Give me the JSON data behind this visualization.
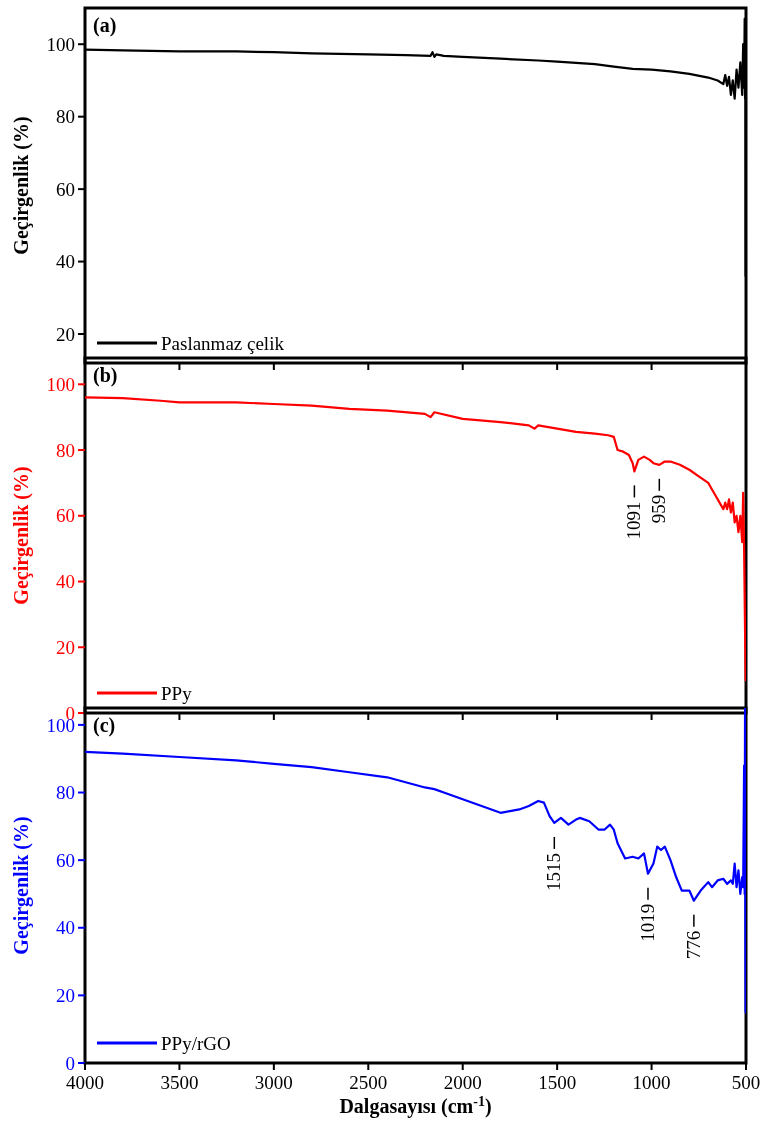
{
  "chart_data": [
    {
      "type": "line",
      "title": "(a)",
      "ylabel": "Geçirgenlik (%)",
      "xlim": [
        4000,
        500
      ],
      "xticks": [
        4000,
        3500,
        3000,
        2500,
        2000,
        1500,
        1000,
        500
      ],
      "ylim": [
        12,
        110
      ],
      "yticks": [
        20,
        40,
        60,
        80,
        100
      ],
      "tick_labels": "y",
      "legend": "bottom left",
      "grid": false,
      "line_style": "solid",
      "series": [
        {
          "name": "Paslanmaz çelik",
          "color": "#000000",
          "x": [
            4000,
            3800,
            3500,
            3200,
            3000,
            2800,
            2500,
            2300,
            2170,
            2160,
            2150,
            2140,
            2100,
            2000,
            1800,
            1600,
            1500,
            1300,
            1200,
            1100,
            1000,
            900,
            800,
            700,
            650,
            620,
            610,
            600,
            590,
            580,
            570,
            560,
            550,
            540,
            530,
            520,
            515,
            510,
            507,
            505,
            503,
            502,
            501,
            500
          ],
          "values": [
            98.5,
            98.3,
            98,
            98,
            97.8,
            97.5,
            97.2,
            97,
            96.8,
            97.8,
            96.5,
            97.2,
            96.8,
            96.5,
            96,
            95.5,
            95.2,
            94.5,
            93.8,
            93.2,
            93,
            92.5,
            91.8,
            90.8,
            90,
            89,
            91.5,
            88.5,
            91,
            86,
            90,
            85,
            93,
            88,
            95,
            86,
            100,
            88,
            107,
            85,
            104,
            36,
            90,
            86
          ]
        }
      ]
    },
    {
      "type": "line",
      "title": "(b)",
      "ylabel": "Geçirgenlik (%)",
      "xlim": [
        4000,
        500
      ],
      "xticks": [
        4000,
        3500,
        3000,
        2500,
        2000,
        1500,
        1000,
        500
      ],
      "ylim": [
        0,
        108
      ],
      "yticks": [
        0,
        20,
        40,
        60,
        80,
        100
      ],
      "tick_labels": "y",
      "legend": "bottom left",
      "grid": false,
      "line_style": "solid",
      "series": [
        {
          "name": "PPy",
          "color": "#ff0000",
          "x": [
            4000,
            3800,
            3600,
            3500,
            3200,
            3000,
            2800,
            2600,
            2400,
            2200,
            2170,
            2150,
            2000,
            1800,
            1650,
            1620,
            1600,
            1500,
            1400,
            1300,
            1230,
            1200,
            1180,
            1150,
            1120,
            1100,
            1091,
            1070,
            1040,
            1010,
            990,
            959,
            930,
            900,
            850,
            800,
            750,
            700,
            680,
            660,
            640,
            620,
            610,
            600,
            590,
            580,
            570,
            560,
            550,
            540,
            530,
            520,
            515,
            510,
            508,
            506,
            504,
            502
          ],
          "values": [
            96,
            95.8,
            95,
            94.5,
            94.5,
            94,
            93.5,
            92.5,
            92,
            91,
            90,
            91.5,
            89.5,
            88.5,
            87.5,
            86.5,
            87.5,
            86.5,
            85.5,
            85,
            84.5,
            84,
            80,
            79.5,
            78.5,
            76,
            73.5,
            77,
            78,
            77,
            76,
            75.5,
            76.5,
            76.5,
            75.5,
            74,
            72,
            70,
            68,
            66,
            64,
            62,
            64,
            62,
            65,
            61,
            64,
            58,
            60,
            55,
            60,
            52,
            67,
            50,
            null,
            30,
            null,
            10
          ]
        }
      ],
      "annotations": [
        {
          "text": "1091",
          "x": 1091,
          "y": 73.5
        },
        {
          "text": "959",
          "x": 959,
          "y": 75.5
        }
      ]
    },
    {
      "type": "line",
      "title": "(c)",
      "ylabel": "Geçirgenlik (%)",
      "xlabel": "Dalgasayısı (cm$^{-1}$)",
      "xlim": [
        4000,
        500
      ],
      "xticks": [
        4000,
        3500,
        3000,
        2500,
        2000,
        1500,
        1000,
        500
      ],
      "ylim": [
        0,
        105
      ],
      "yticks": [
        0,
        20,
        40,
        60,
        80,
        100
      ],
      "legend": "bottom left",
      "grid": false,
      "line_style": "solid",
      "series": [
        {
          "name": "PPy/rGO",
          "color": "#0000ff",
          "x": [
            4000,
            3800,
            3500,
            3200,
            3000,
            2800,
            2600,
            2400,
            2200,
            2150,
            2100,
            2000,
            1900,
            1800,
            1750,
            1700,
            1650,
            1600,
            1570,
            1540,
            1515,
            1480,
            1440,
            1400,
            1380,
            1330,
            1280,
            1250,
            1220,
            1200,
            1180,
            1140,
            1100,
            1070,
            1040,
            1019,
            990,
            970,
            950,
            930,
            900,
            870,
            840,
            800,
            776,
            740,
            700,
            680,
            650,
            620,
            600,
            580,
            570,
            560,
            550,
            540,
            530,
            520,
            515,
            510,
            507,
            505,
            503,
            502
          ],
          "values": [
            92,
            91.5,
            90.5,
            89.5,
            88.5,
            87.5,
            86,
            84.5,
            81.5,
            81,
            80,
            78,
            76,
            74,
            74.5,
            75,
            76,
            77.5,
            77,
            73,
            71,
            72.5,
            70.5,
            72,
            72.5,
            71.5,
            69,
            69,
            70.5,
            69,
            65,
            60.5,
            61,
            60.5,
            62,
            56,
            59,
            64,
            63,
            64,
            60,
            55,
            51,
            51,
            48,
            51,
            53.5,
            52,
            54,
            54.5,
            53,
            54,
            53,
            59,
            52,
            57,
            50,
            55,
            52,
            88,
            50,
            105,
            30,
            15
          ]
        }
      ],
      "annotations": [
        {
          "text": "1515",
          "x": 1515,
          "y": 71
        },
        {
          "text": "1019",
          "x": 1019,
          "y": 56
        },
        {
          "text": "776",
          "x": 776,
          "y": 48
        }
      ]
    }
  ]
}
